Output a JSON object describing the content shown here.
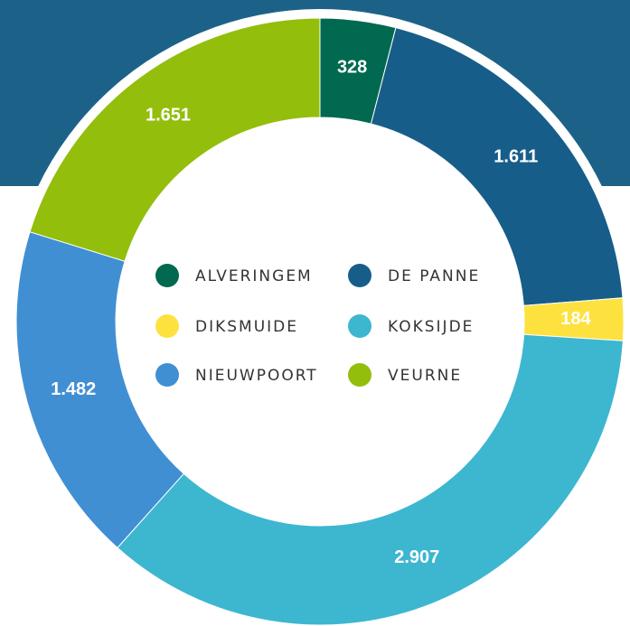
{
  "chart_data": {
    "type": "pie",
    "categories": [
      "ALVERINGEM",
      "DE PANNE",
      "DIKSMUIDE",
      "KOKSIJDE",
      "NIEUWPOORT",
      "VEURNE"
    ],
    "values": [
      328,
      1611,
      184,
      2907,
      1482,
      1651
    ],
    "value_labels": [
      "328",
      "1.611",
      "184",
      "2.907",
      "1.482",
      "1.651"
    ],
    "colors": [
      "#00694f",
      "#175d89",
      "#fde23f",
      "#3db6d0",
      "#418fd3",
      "#93be0b"
    ],
    "legend": "center"
  }
}
